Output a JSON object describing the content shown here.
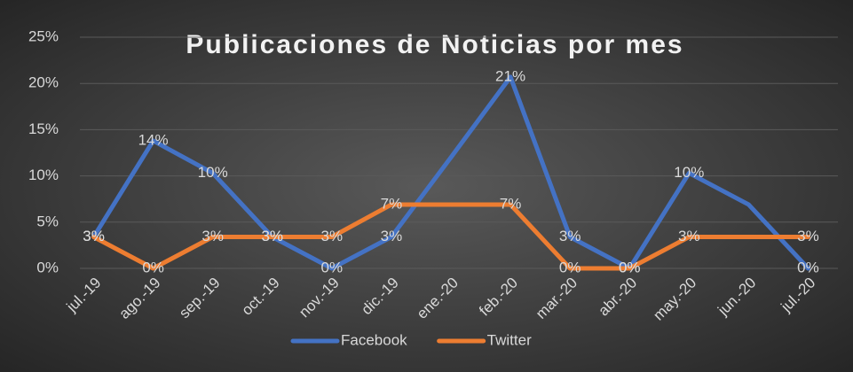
{
  "chart_data": {
    "type": "line",
    "title": "Publicaciones de Noticias por mes",
    "categories": [
      "jul.-19",
      "ago.-19",
      "sep.-19",
      "oct.-19",
      "nov.-19",
      "dic.-19",
      "ene.-20",
      "feb.-20",
      "mar.-20",
      "abr.-20",
      "may.-20",
      "jun.-20",
      "jul.-20"
    ],
    "series": [
      {
        "name": "Facebook",
        "color": "#4472c4",
        "values": [
          3.4,
          13.8,
          10.3,
          3.4,
          0,
          3.4,
          12,
          20.7,
          3.4,
          0,
          10.3,
          6.9,
          0
        ],
        "value_labels": [
          "3%",
          "14%",
          "10%",
          "3%",
          "0%",
          "3%",
          null,
          "21%",
          "3%",
          "0%",
          "10%",
          null,
          "0%"
        ]
      },
      {
        "name": "Twitter",
        "color": "#ed7d31",
        "values": [
          3.4,
          0,
          3.4,
          3.4,
          3.4,
          6.9,
          6.9,
          6.9,
          0,
          0,
          3.4,
          3.4,
          3.4
        ],
        "value_labels": [
          "3%",
          "0%",
          "3%",
          "3%",
          "3%",
          "7%",
          null,
          "7%",
          "0%",
          "0%",
          "3%",
          null,
          "3%"
        ]
      }
    ],
    "ylim": [
      0,
      25
    ],
    "yticks": [
      {
        "value": 0,
        "label": "0%"
      },
      {
        "value": 5,
        "label": "5%"
      },
      {
        "value": 10,
        "label": "10%"
      },
      {
        "value": 15,
        "label": "15%"
      },
      {
        "value": 20,
        "label": "20%"
      },
      {
        "value": 25,
        "label": "25%"
      }
    ],
    "grid": true,
    "legend": "bottom"
  }
}
